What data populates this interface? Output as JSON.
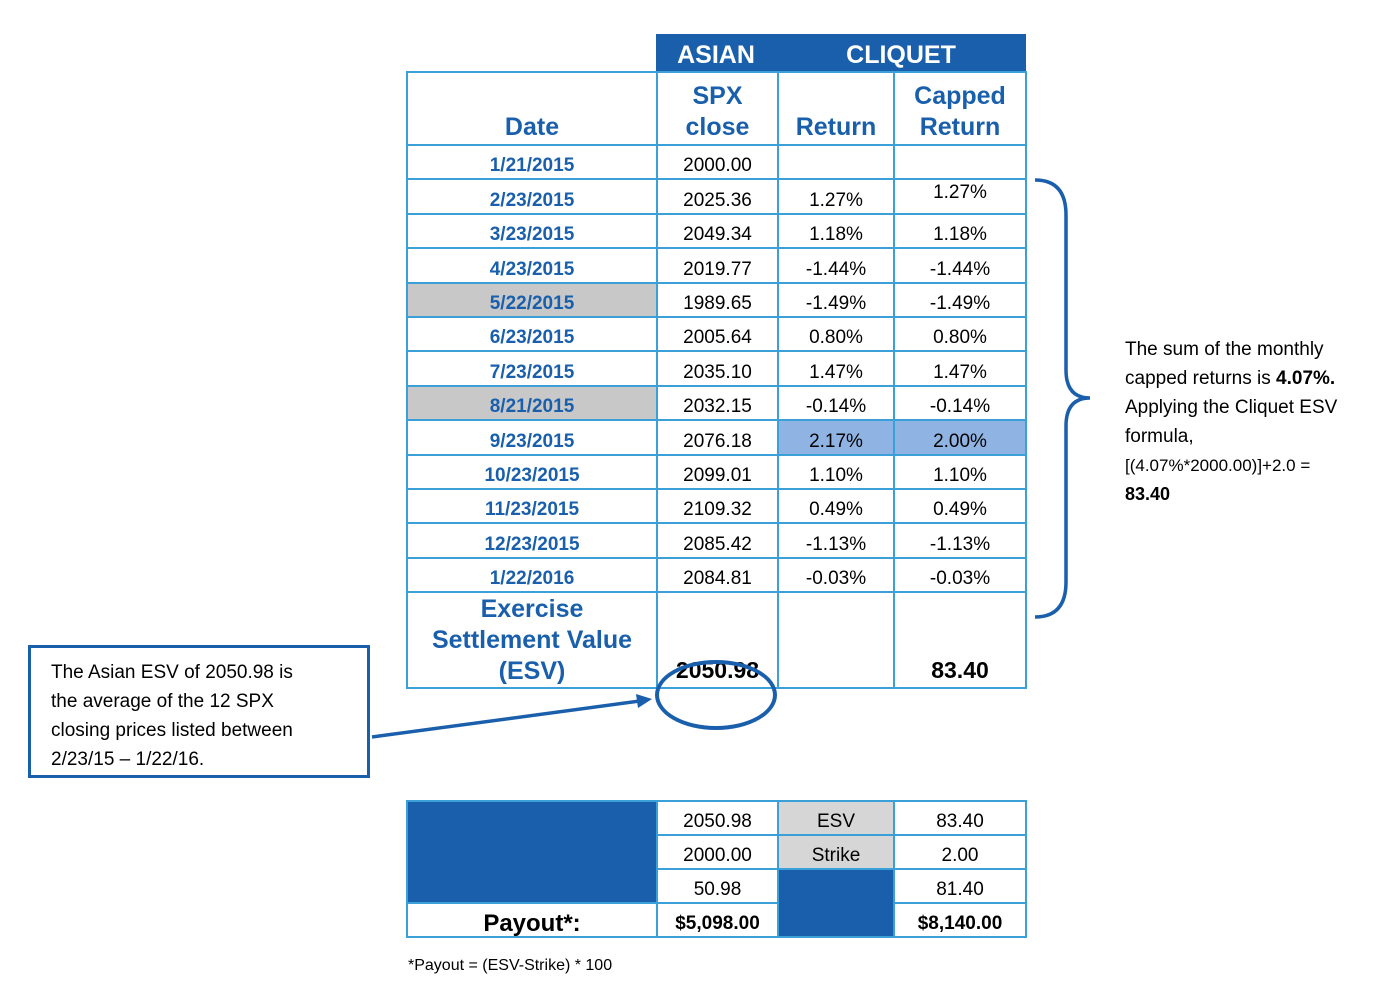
{
  "header": {
    "asian": "ASIAN",
    "cliquet": "CLIQUET"
  },
  "columns": {
    "date": "Date",
    "spx_line1": "SPX",
    "spx_line2": "close",
    "return": "Return",
    "capped_line1": "Capped",
    "capped_line2": "Return"
  },
  "rows": [
    {
      "date": "1/21/2015",
      "spx": "2000.00",
      "ret": "",
      "cap": ""
    },
    {
      "date": "2/23/2015",
      "spx": "2025.36",
      "ret": "1.27%",
      "cap": "1.27%"
    },
    {
      "date": "3/23/2015",
      "spx": "2049.34",
      "ret": "1.18%",
      "cap": "1.18%"
    },
    {
      "date": "4/23/2015",
      "spx": "2019.77",
      "ret": "-1.44%",
      "cap": "-1.44%"
    },
    {
      "date": "5/22/2015",
      "spx": "1989.65",
      "ret": "-1.49%",
      "cap": "-1.49%"
    },
    {
      "date": "6/23/2015",
      "spx": "2005.64",
      "ret": "0.80%",
      "cap": "0.80%"
    },
    {
      "date": "7/23/2015",
      "spx": "2035.10",
      "ret": "1.47%",
      "cap": "1.47%"
    },
    {
      "date": "8/21/2015",
      "spx": "2032.15",
      "ret": "-0.14%",
      "cap": "-0.14%"
    },
    {
      "date": "9/23/2015",
      "spx": "2076.18",
      "ret": "2.17%",
      "cap": "2.00%"
    },
    {
      "date": "10/23/2015",
      "spx": "2099.01",
      "ret": "1.10%",
      "cap": "1.10%"
    },
    {
      "date": "11/23/2015",
      "spx": "2109.32",
      "ret": "0.49%",
      "cap": "0.49%"
    },
    {
      "date": "12/23/2015",
      "spx": "2085.42",
      "ret": "-1.13%",
      "cap": "-1.13%"
    },
    {
      "date": "1/22/2016",
      "spx": "2084.81",
      "ret": "-0.03%",
      "cap": "-0.03%"
    }
  ],
  "esv": {
    "label_line1": "Exercise",
    "label_line2": "Settlement Value",
    "label_line3": "(ESV)",
    "asian_value": "2050.98",
    "cliquet_value": "83.40"
  },
  "note_right": {
    "line1": "The sum of the monthly",
    "line2a": "capped returns is ",
    "line2b": "4.07%.",
    "line3": "Applying the Cliquet ESV",
    "line4": "formula,",
    "line5": "[(4.07%*2000.00)]+2.0 =",
    "line6": "83.40"
  },
  "callout": {
    "line1": "The Asian ESV of 2050.98 is",
    "line2": "the average of the 12 SPX",
    "line3": "closing prices listed between",
    "line4": "2/23/15 – 1/22/16."
  },
  "payout": {
    "asian": [
      "2050.98",
      "2000.00",
      "50.98"
    ],
    "labels": [
      "ESV",
      "Strike"
    ],
    "cliquet": [
      "83.40",
      "2.00",
      "81.40"
    ],
    "payout_label": "Payout*:",
    "asian_payout": "$5,098.00",
    "cliquet_payout": "$8,140.00"
  },
  "footnote": "*Payout = (ESV-Strike) * 100",
  "colors": {
    "brand_blue": "#1a5fac",
    "grid_blue": "#3b9fd8",
    "grey_highlight": "#c8c8c8",
    "light_blue_highlight": "#8fb4e3"
  }
}
